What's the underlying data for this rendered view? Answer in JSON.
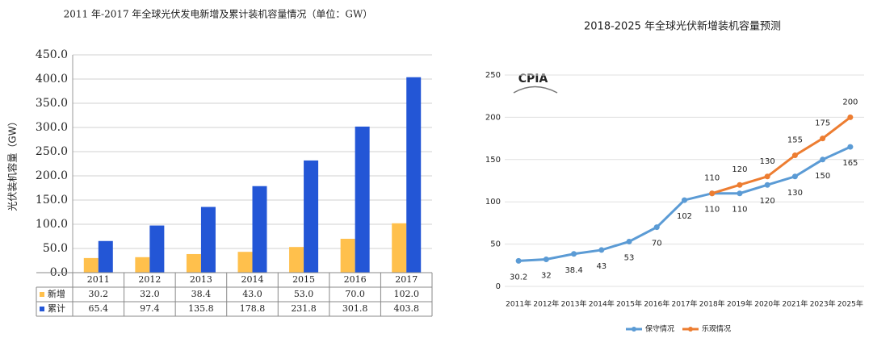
{
  "chart_data": [
    {
      "type": "bar",
      "title": "2011 年-2017 年全球光伏发电新增及累计装机容量情况（单位：GW）",
      "y_label": "光伏装机容量（GW）",
      "categories": [
        "2011",
        "2012",
        "2013",
        "2014",
        "2015",
        "2016",
        "2017"
      ],
      "series": [
        {
          "name": "新增",
          "color": "#ffc04c",
          "values": [
            30.2,
            32.0,
            38.4,
            43.0,
            53.0,
            70.0,
            102.0
          ],
          "value_labels": [
            "30.2",
            "32.0",
            "38.4",
            "43.0",
            "53.0",
            "70.0",
            "102.0"
          ]
        },
        {
          "name": "累计",
          "color": "#2356d6",
          "values": [
            65.4,
            97.4,
            135.8,
            178.8,
            231.8,
            301.8,
            403.8
          ],
          "value_labels": [
            "65.4",
            "97.4",
            "135.8",
            "178.8",
            "231.8",
            "301.8",
            "403.8"
          ]
        }
      ],
      "ylim": [
        0,
        450
      ],
      "yticks": [
        {
          "value": 0,
          "label": "0.0"
        },
        {
          "value": 50,
          "label": "50.0"
        },
        {
          "value": 100,
          "label": "100.0"
        },
        {
          "value": 150,
          "label": "150.0"
        },
        {
          "value": 200,
          "label": "200.0"
        },
        {
          "value": 250,
          "label": "250.0"
        },
        {
          "value": 300,
          "label": "300.0"
        },
        {
          "value": 350,
          "label": "350.0"
        },
        {
          "value": 400,
          "label": "400.0"
        },
        {
          "value": 450,
          "label": "450.0"
        }
      ],
      "grid": true
    },
    {
      "type": "line",
      "title": "2018-2025 年全球光伏新增装机容量预测",
      "logo": "CPIA",
      "categories": [
        "2011年",
        "2012年",
        "2013年",
        "2014年",
        "2015年",
        "2016年",
        "2017年",
        "2018年",
        "2019年",
        "2020年",
        "2021年",
        "2023年",
        "2025年"
      ],
      "series": [
        {
          "name": "保守情况",
          "color": "#5b9bd5",
          "values": [
            30.2,
            32,
            38.4,
            43,
            53,
            70,
            102,
            110,
            110,
            120,
            130,
            150,
            165
          ]
        },
        {
          "name": "乐观情况",
          "color": "#ed7d31",
          "values": [
            null,
            null,
            null,
            null,
            null,
            null,
            null,
            110,
            120,
            130,
            155,
            175,
            200
          ]
        }
      ],
      "ylim": [
        0,
        250
      ],
      "yticks": [
        0,
        50,
        100,
        150,
        200,
        250
      ],
      "grid": true
    }
  ]
}
